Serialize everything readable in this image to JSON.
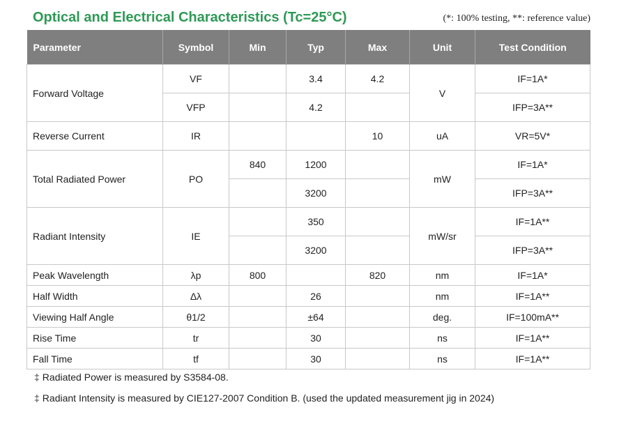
{
  "title": "Optical and Electrical Characteristics (Tc=25°C)",
  "note": "(*: 100% testing, **: reference value)",
  "table": {
    "headers": [
      "Parameter",
      "Symbol",
      "Min",
      "Typ",
      "Max",
      "Unit",
      "Test Condition"
    ],
    "rows": {
      "forward_voltage": {
        "parameter": "Forward Voltage",
        "unit": "V",
        "sub": [
          {
            "symbol": "VF",
            "min": "",
            "typ": "3.4",
            "max": "4.2",
            "condition": "IF=1A*"
          },
          {
            "symbol": "VFP",
            "min": "",
            "typ": "4.2",
            "max": "",
            "condition": "IFP=3A**"
          }
        ]
      },
      "reverse_current": {
        "parameter": "Reverse Current",
        "symbol": "IR",
        "min": "",
        "typ": "",
        "max": "10",
        "unit": "uA",
        "condition": "VR=5V*"
      },
      "total_radiated_power": {
        "parameter": "Total Radiated Power",
        "symbol": "PO",
        "unit": "mW",
        "sub": [
          {
            "min": "840",
            "typ": "1200",
            "max": "",
            "condition": "IF=1A*"
          },
          {
            "min": "",
            "typ": "3200",
            "max": "",
            "condition": "IFP=3A**"
          }
        ]
      },
      "radiant_intensity": {
        "parameter": "Radiant Intensity",
        "symbol": "IE",
        "unit": "mW/sr",
        "sub": [
          {
            "min": "",
            "typ": "350",
            "max": "",
            "condition": "IF=1A**"
          },
          {
            "min": "",
            "typ": "3200",
            "max": "",
            "condition": "IFP=3A**"
          }
        ]
      },
      "peak_wavelength": {
        "parameter": "Peak Wavelength",
        "symbol": "λp",
        "min": "800",
        "typ": "",
        "max": "820",
        "unit": "nm",
        "condition": "IF=1A*"
      },
      "half_width": {
        "parameter": "Half Width",
        "symbol": "Δλ",
        "min": "",
        "typ": "26",
        "max": "",
        "unit": "nm",
        "condition": "IF=1A**"
      },
      "viewing_half_angle": {
        "parameter": "Viewing Half Angle",
        "symbol": "θ1/2",
        "min": "",
        "typ": "±64",
        "max": "",
        "unit": "deg.",
        "condition": "IF=100mA**"
      },
      "rise_time": {
        "parameter": "Rise Time",
        "symbol": "tr",
        "min": "",
        "typ": "30",
        "max": "",
        "unit": "ns",
        "condition": "IF=1A**"
      },
      "fall_time": {
        "parameter": "Fall Time",
        "symbol": "tf",
        "min": "",
        "typ": "30",
        "max": "",
        "unit": "ns",
        "condition": "IF=1A**"
      }
    }
  },
  "footnotes": {
    "marker": "‡",
    "items": [
      "Radiated Power is measured by S3584-08.",
      "Radiant Intensity is measured by CIE127-2007 Condition B. (used the updated measurement jig in 2024)"
    ]
  },
  "colors": {
    "title_green": "#2e9a55",
    "header_gray": "#7f7f7f",
    "border": "#c8c8c8"
  }
}
